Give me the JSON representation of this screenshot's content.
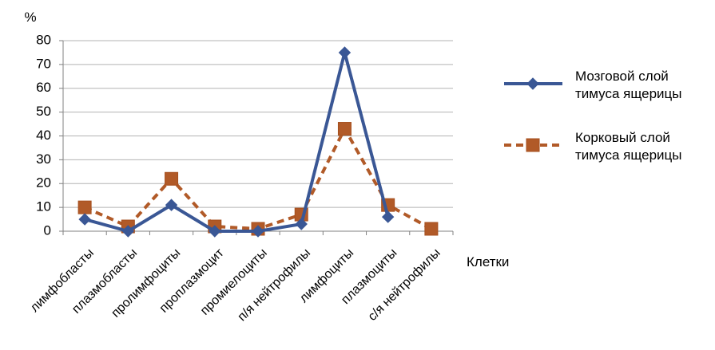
{
  "chart_data": {
    "type": "line",
    "title": "",
    "ylabel": "%",
    "xlabel": "Клетки",
    "ylim": [
      0,
      80
    ],
    "yticks": [
      0,
      10,
      20,
      30,
      40,
      50,
      60,
      70,
      80
    ],
    "grid": true,
    "legend_position": "right",
    "categories": [
      "лимфобласты",
      "плазмобласты",
      "пролимфоциты",
      "проплазмоцит",
      "промиелоциты",
      "п/я нейтрофилы",
      "лимфоциты",
      "плазмоциты",
      "с/я нейтрофилы"
    ],
    "series": [
      {
        "name_lines": [
          "Мозговой слой",
          "тимуса ящерицы"
        ],
        "color": "#3a5795",
        "marker": "diamond",
        "line_style": "solid",
        "values": [
          5,
          0,
          11,
          0,
          0,
          3,
          75,
          6,
          null
        ]
      },
      {
        "name_lines": [
          "Корковый слой",
          "тимуса ящерицы"
        ],
        "color": "#b15a28",
        "marker": "square",
        "line_style": "dashed",
        "values": [
          10,
          2,
          22,
          2,
          1,
          7,
          43,
          11,
          1
        ]
      }
    ]
  }
}
